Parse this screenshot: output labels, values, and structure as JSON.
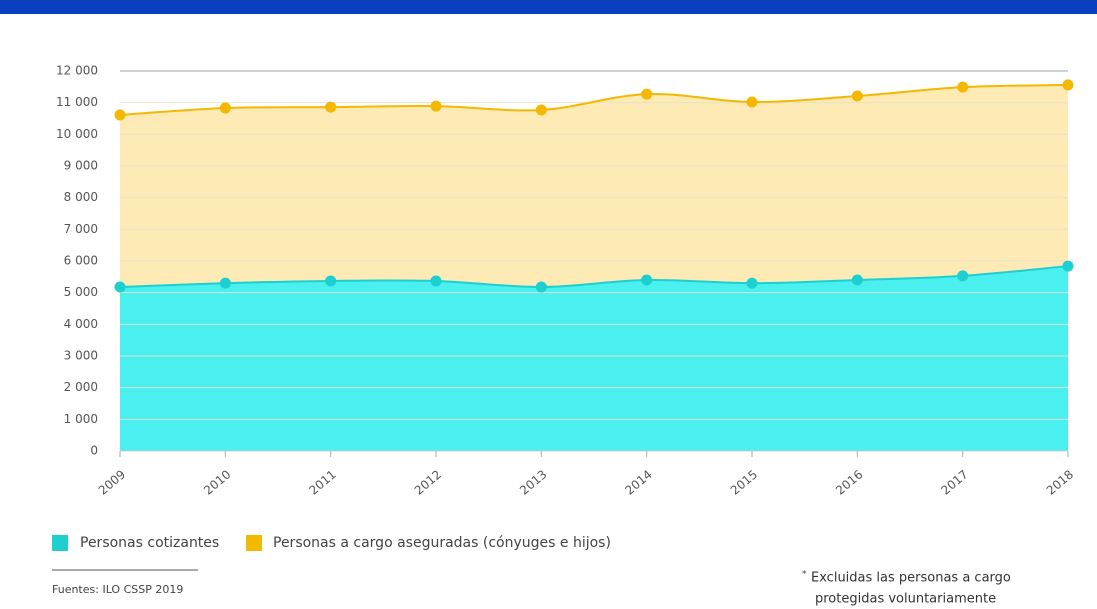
{
  "chart_data": {
    "type": "stacked_area",
    "categories": [
      "2009",
      "2010",
      "2011",
      "2012",
      "2013",
      "2014",
      "2015",
      "2016",
      "2017",
      "2018"
    ],
    "series": [
      {
        "name": "Personas cotizantes",
        "color": "#1ecfcf",
        "fill": "#4af0f0",
        "values": [
          5180,
          5300,
          5370,
          5370,
          5180,
          5400,
          5300,
          5400,
          5530,
          5840
        ]
      },
      {
        "name": "Personas a cargo aseguradas (cónyuges e hijos)",
        "color": "#f5b800",
        "fill": "#fdeab5",
        "values": [
          5430,
          5530,
          5490,
          5520,
          5590,
          5870,
          5720,
          5810,
          5960,
          5720
        ]
      }
    ],
    "ylim": [
      0,
      12000
    ],
    "yticks": [
      0,
      {
        "value": 1000,
        "label": "1 000"
      },
      {
        "value": 2000,
        "label": "2 000"
      },
      {
        "value": 3000,
        "label": "3 000"
      },
      {
        "value": 4000,
        "label": "4 000"
      },
      {
        "value": 5000,
        "label": "5 000"
      },
      {
        "value": 6000,
        "label": "6 000"
      },
      {
        "value": 7000,
        "label": "7 000"
      },
      {
        "value": 8000,
        "label": "8 000"
      },
      {
        "value": 9000,
        "label": "9 000"
      },
      {
        "value": 10000,
        "label": "10 000"
      },
      {
        "value": 11000,
        "label": "11 000"
      },
      {
        "value": 12000,
        "label": "12 000"
      }
    ],
    "grid": true,
    "source": "Fuentes: ILO CSSP 2019",
    "note_mark": "*",
    "note": [
      "Excluidas las personas a cargo",
      "protegidas voluntariamente"
    ]
  }
}
